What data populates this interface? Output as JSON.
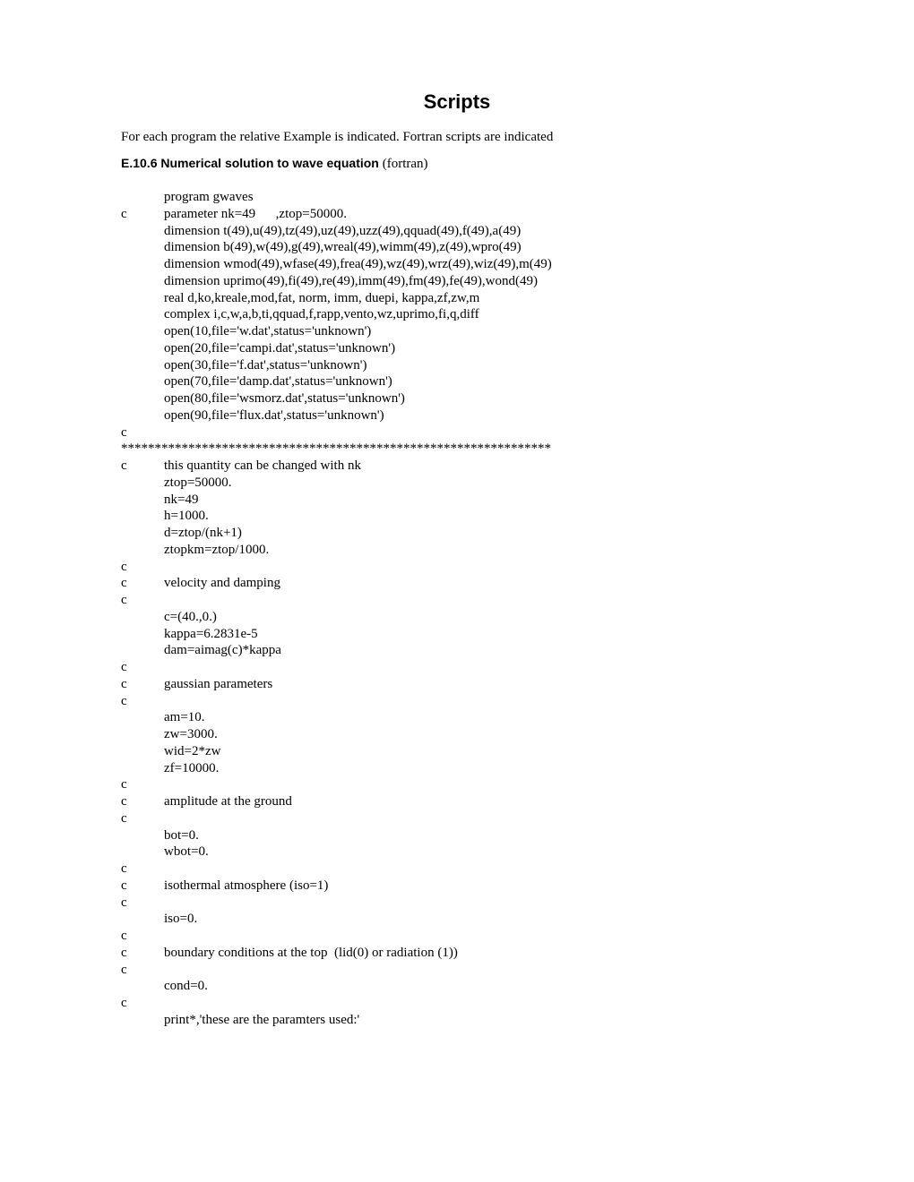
{
  "title": "Scripts",
  "intro": "For each program the relative Example is indicated. Fortran scripts are indicated",
  "section": {
    "num": "E.10.6 Numerical solution to wave equation",
    "paren": "(fortran)"
  },
  "lines": [
    {
      "c": "",
      "t": "program gwaves"
    },
    {
      "c": "c",
      "t": "parameter nk=49      ,ztop=50000."
    },
    {
      "c": "",
      "t": "dimension t(49),u(49),tz(49),uz(49),uzz(49),qquad(49),f(49),a(49)"
    },
    {
      "c": "",
      "t": "dimension b(49),w(49),g(49),wreal(49),wimm(49),z(49),wpro(49)"
    },
    {
      "c": "",
      "t": "dimension wmod(49),wfase(49),frea(49),wz(49),wrz(49),wiz(49),m(49)"
    },
    {
      "c": "",
      "t": "dimension uprimo(49),fi(49),re(49),imm(49),fm(49),fe(49),wond(49)"
    },
    {
      "c": "",
      "t": "real d,ko,kreale,mod,fat, norm, imm, duepi, kappa,zf,zw,m"
    },
    {
      "c": "",
      "t": "complex i,c,w,a,b,ti,qquad,f,rapp,vento,wz,uprimo,fi,q,diff"
    },
    {
      "c": "",
      "t": "open(10,file='w.dat',status='unknown')"
    },
    {
      "c": "",
      "t": "open(20,file='campi.dat',status='unknown')"
    },
    {
      "c": "",
      "t": "open(30,file='f.dat',status='unknown')"
    },
    {
      "c": "",
      "t": "open(70,file='damp.dat',status='unknown')"
    },
    {
      "c": "",
      "t": "open(80,file='wsmorz.dat',status='unknown')"
    },
    {
      "c": "",
      "t": "open(90,file='flux.dat',status='unknown')"
    },
    {
      "c": "c",
      "t": ""
    },
    {
      "raw": "****************************************************************"
    },
    {
      "c": "c",
      "t": "this quantity can be changed with nk"
    },
    {
      "c": "",
      "t": "ztop=50000."
    },
    {
      "c": "",
      "t": "nk=49"
    },
    {
      "c": "",
      "t": "h=1000."
    },
    {
      "c": "",
      "t": "d=ztop/(nk+1)"
    },
    {
      "c": "",
      "t": "ztopkm=ztop/1000."
    },
    {
      "c": "c",
      "t": ""
    },
    {
      "c": "c",
      "t": "velocity and damping"
    },
    {
      "c": "c",
      "t": ""
    },
    {
      "c": "",
      "t": "c=(40.,0.)"
    },
    {
      "c": "",
      "t": "kappa=6.2831e-5"
    },
    {
      "c": "",
      "t": "dam=aimag(c)*kappa"
    },
    {
      "c": "c",
      "t": ""
    },
    {
      "c": "c",
      "t": "gaussian parameters"
    },
    {
      "c": "c",
      "t": ""
    },
    {
      "c": "",
      "t": "am=10."
    },
    {
      "c": "",
      "t": "zw=3000."
    },
    {
      "c": "",
      "t": "wid=2*zw"
    },
    {
      "c": "",
      "t": "zf=10000."
    },
    {
      "c": "c",
      "t": ""
    },
    {
      "c": "c",
      "t": "amplitude at the ground"
    },
    {
      "c": "c",
      "t": ""
    },
    {
      "c": "",
      "t": "bot=0."
    },
    {
      "c": "",
      "t": "wbot=0."
    },
    {
      "c": "c",
      "t": ""
    },
    {
      "c": "c",
      "t": "isothermal atmosphere (iso=1)"
    },
    {
      "c": "c",
      "t": ""
    },
    {
      "c": "",
      "t": "iso=0."
    },
    {
      "c": "c",
      "t": ""
    },
    {
      "c": "c",
      "t": "boundary conditions at the top  (lid(0) or radiation (1))"
    },
    {
      "c": "c",
      "t": ""
    },
    {
      "c": "",
      "t": "cond=0."
    },
    {
      "c": "c",
      "t": ""
    },
    {
      "c": "",
      "t": "print*,'these are the paramters used:'"
    }
  ]
}
